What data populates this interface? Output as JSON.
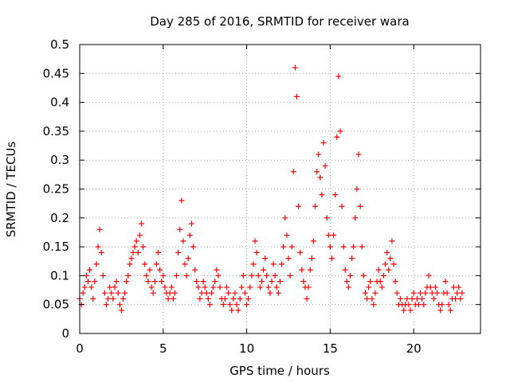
{
  "chart_data": {
    "type": "scatter",
    "title": "Day 285 of 2016, SRMTID for receiver wara",
    "xlabel": "GPS time / hours",
    "ylabel": "SRMTID / TECUs",
    "xlim": [
      0,
      24
    ],
    "ylim": [
      0,
      0.5
    ],
    "x_ticks": [
      0,
      5,
      10,
      15,
      20
    ],
    "x_tick_labels": [
      "0",
      "5",
      "10",
      "15",
      "20"
    ],
    "y_ticks": [
      0,
      0.05,
      0.1,
      0.15,
      0.2,
      0.25,
      0.3,
      0.35,
      0.4,
      0.45,
      0.5
    ],
    "y_tick_labels": [
      "0",
      "0.05",
      "0.1",
      "0.15",
      "0.2",
      "0.25",
      "0.3",
      "0.35",
      "0.4",
      "0.45",
      "0.5"
    ],
    "grid": true,
    "marker": "+",
    "series": [
      {
        "name": "SRMTID",
        "color": "#ff0000",
        "points": [
          [
            0.0,
            0.06
          ],
          [
            0.1,
            0.05
          ],
          [
            0.2,
            0.07
          ],
          [
            0.3,
            0.08
          ],
          [
            0.4,
            0.1
          ],
          [
            0.5,
            0.09
          ],
          [
            0.6,
            0.11
          ],
          [
            0.7,
            0.08
          ],
          [
            0.8,
            0.06
          ],
          [
            0.9,
            0.09
          ],
          [
            1.0,
            0.12
          ],
          [
            1.1,
            0.15
          ],
          [
            1.2,
            0.18
          ],
          [
            1.3,
            0.14
          ],
          [
            1.4,
            0.1
          ],
          [
            1.5,
            0.07
          ],
          [
            1.6,
            0.05
          ],
          [
            1.7,
            0.06
          ],
          [
            1.8,
            0.08
          ],
          [
            1.9,
            0.07
          ],
          [
            2.0,
            0.06
          ],
          [
            2.1,
            0.08
          ],
          [
            2.2,
            0.09
          ],
          [
            2.3,
            0.07
          ],
          [
            2.4,
            0.05
          ],
          [
            2.5,
            0.04
          ],
          [
            2.6,
            0.06
          ],
          [
            2.7,
            0.07
          ],
          [
            2.8,
            0.09
          ],
          [
            2.9,
            0.1
          ],
          [
            3.0,
            0.12
          ],
          [
            3.1,
            0.13
          ],
          [
            3.2,
            0.14
          ],
          [
            3.3,
            0.15
          ],
          [
            3.4,
            0.16
          ],
          [
            3.5,
            0.14
          ],
          [
            3.6,
            0.17
          ],
          [
            3.7,
            0.19
          ],
          [
            3.8,
            0.15
          ],
          [
            3.9,
            0.12
          ],
          [
            4.0,
            0.1
          ],
          [
            4.1,
            0.09
          ],
          [
            4.2,
            0.11
          ],
          [
            4.3,
            0.08
          ],
          [
            4.4,
            0.07
          ],
          [
            4.5,
            0.09
          ],
          [
            4.6,
            0.12
          ],
          [
            4.7,
            0.14
          ],
          [
            4.8,
            0.11
          ],
          [
            4.9,
            0.09
          ],
          [
            5.0,
            0.1
          ],
          [
            5.1,
            0.08
          ],
          [
            5.2,
            0.07
          ],
          [
            5.3,
            0.06
          ],
          [
            5.4,
            0.07
          ],
          [
            5.5,
            0.08
          ],
          [
            5.6,
            0.06
          ],
          [
            5.7,
            0.07
          ],
          [
            5.8,
            0.1
          ],
          [
            5.9,
            0.14
          ],
          [
            6.0,
            0.18
          ],
          [
            6.1,
            0.23
          ],
          [
            6.2,
            0.16
          ],
          [
            6.3,
            0.12
          ],
          [
            6.4,
            0.1
          ],
          [
            6.5,
            0.13
          ],
          [
            6.6,
            0.17
          ],
          [
            6.7,
            0.19
          ],
          [
            6.8,
            0.15
          ],
          [
            6.9,
            0.11
          ],
          [
            7.0,
            0.09
          ],
          [
            7.1,
            0.08
          ],
          [
            7.2,
            0.06
          ],
          [
            7.3,
            0.07
          ],
          [
            7.4,
            0.09
          ],
          [
            7.5,
            0.08
          ],
          [
            7.6,
            0.07
          ],
          [
            7.7,
            0.06
          ],
          [
            7.8,
            0.05
          ],
          [
            7.9,
            0.07
          ],
          [
            8.0,
            0.08
          ],
          [
            8.1,
            0.09
          ],
          [
            8.2,
            0.11
          ],
          [
            8.3,
            0.1
          ],
          [
            8.4,
            0.08
          ],
          [
            8.5,
            0.06
          ],
          [
            8.6,
            0.05
          ],
          [
            8.7,
            0.06
          ],
          [
            8.8,
            0.08
          ],
          [
            8.9,
            0.07
          ],
          [
            9.0,
            0.05
          ],
          [
            9.1,
            0.04
          ],
          [
            9.2,
            0.06
          ],
          [
            9.3,
            0.07
          ],
          [
            9.4,
            0.05
          ],
          [
            9.5,
            0.04
          ],
          [
            9.6,
            0.06
          ],
          [
            9.7,
            0.08
          ],
          [
            9.8,
            0.1
          ],
          [
            9.9,
            0.07
          ],
          [
            10.0,
            0.05
          ],
          [
            10.1,
            0.06
          ],
          [
            10.2,
            0.08
          ],
          [
            10.3,
            0.1
          ],
          [
            10.4,
            0.12
          ],
          [
            10.5,
            0.16
          ],
          [
            10.6,
            0.14
          ],
          [
            10.7,
            0.1
          ],
          [
            10.8,
            0.08
          ],
          [
            10.9,
            0.09
          ],
          [
            11.0,
            0.11
          ],
          [
            11.1,
            0.13
          ],
          [
            11.2,
            0.1
          ],
          [
            11.3,
            0.08
          ],
          [
            11.4,
            0.07
          ],
          [
            11.5,
            0.09
          ],
          [
            11.6,
            0.12
          ],
          [
            11.7,
            0.1
          ],
          [
            11.8,
            0.08
          ],
          [
            11.9,
            0.07
          ],
          [
            12.0,
            0.09
          ],
          [
            12.1,
            0.12
          ],
          [
            12.2,
            0.15
          ],
          [
            12.3,
            0.2
          ],
          [
            12.4,
            0.17
          ],
          [
            12.5,
            0.13
          ],
          [
            12.6,
            0.1
          ],
          [
            12.7,
            0.15
          ],
          [
            12.8,
            0.28
          ],
          [
            12.9,
            0.46
          ],
          [
            13.0,
            0.41
          ],
          [
            13.1,
            0.22
          ],
          [
            13.2,
            0.14
          ],
          [
            13.3,
            0.11
          ],
          [
            13.4,
            0.09
          ],
          [
            13.5,
            0.08
          ],
          [
            13.6,
            0.06
          ],
          [
            13.7,
            0.08
          ],
          [
            13.8,
            0.11
          ],
          [
            13.9,
            0.13
          ],
          [
            14.0,
            0.16
          ],
          [
            14.1,
            0.22
          ],
          [
            14.2,
            0.28
          ],
          [
            14.3,
            0.31
          ],
          [
            14.4,
            0.27
          ],
          [
            14.5,
            0.24
          ],
          [
            14.6,
            0.33
          ],
          [
            14.7,
            0.29
          ],
          [
            14.8,
            0.2
          ],
          [
            14.9,
            0.17
          ],
          [
            15.0,
            0.15
          ],
          [
            15.1,
            0.13
          ],
          [
            15.2,
            0.17
          ],
          [
            15.3,
            0.24
          ],
          [
            15.4,
            0.34
          ],
          [
            15.5,
            0.445
          ],
          [
            15.6,
            0.35
          ],
          [
            15.7,
            0.22
          ],
          [
            15.8,
            0.15
          ],
          [
            15.9,
            0.11
          ],
          [
            16.0,
            0.09
          ],
          [
            16.1,
            0.08
          ],
          [
            16.2,
            0.1
          ],
          [
            16.3,
            0.13
          ],
          [
            16.4,
            0.15
          ],
          [
            16.5,
            0.2
          ],
          [
            16.6,
            0.25
          ],
          [
            16.7,
            0.31
          ],
          [
            16.8,
            0.22
          ],
          [
            16.9,
            0.15
          ],
          [
            17.0,
            0.1
          ],
          [
            17.1,
            0.07
          ],
          [
            17.2,
            0.06
          ],
          [
            17.3,
            0.08
          ],
          [
            17.4,
            0.09
          ],
          [
            17.5,
            0.06
          ],
          [
            17.6,
            0.05
          ],
          [
            17.7,
            0.07
          ],
          [
            17.8,
            0.09
          ],
          [
            17.9,
            0.11
          ],
          [
            18.0,
            0.09
          ],
          [
            18.1,
            0.08
          ],
          [
            18.2,
            0.1
          ],
          [
            18.3,
            0.12
          ],
          [
            18.4,
            0.14
          ],
          [
            18.5,
            0.11
          ],
          [
            18.6,
            0.13
          ],
          [
            18.7,
            0.16
          ],
          [
            18.8,
            0.12
          ],
          [
            18.9,
            0.09
          ],
          [
            19.0,
            0.07
          ],
          [
            19.1,
            0.05
          ],
          [
            19.2,
            0.06
          ],
          [
            19.3,
            0.05
          ],
          [
            19.4,
            0.04
          ],
          [
            19.5,
            0.05
          ],
          [
            19.6,
            0.06
          ],
          [
            19.7,
            0.05
          ],
          [
            19.8,
            0.04
          ],
          [
            19.9,
            0.06
          ],
          [
            20.0,
            0.07
          ],
          [
            20.1,
            0.05
          ],
          [
            20.2,
            0.06
          ],
          [
            20.3,
            0.05
          ],
          [
            20.4,
            0.07
          ],
          [
            20.5,
            0.06
          ],
          [
            20.6,
            0.05
          ],
          [
            20.7,
            0.07
          ],
          [
            20.8,
            0.08
          ],
          [
            20.9,
            0.1
          ],
          [
            21.0,
            0.08
          ],
          [
            21.1,
            0.07
          ],
          [
            21.2,
            0.06
          ],
          [
            21.3,
            0.08
          ],
          [
            21.4,
            0.07
          ],
          [
            21.5,
            0.05
          ],
          [
            21.6,
            0.04
          ],
          [
            21.7,
            0.05
          ],
          [
            21.8,
            0.07
          ],
          [
            21.9,
            0.09
          ],
          [
            22.0,
            0.07
          ],
          [
            22.1,
            0.05
          ],
          [
            22.2,
            0.04
          ],
          [
            22.3,
            0.06
          ],
          [
            22.4,
            0.08
          ],
          [
            22.5,
            0.06
          ],
          [
            22.6,
            0.07
          ],
          [
            22.7,
            0.08
          ],
          [
            22.8,
            0.06
          ],
          [
            22.9,
            0.07
          ]
        ]
      }
    ]
  }
}
